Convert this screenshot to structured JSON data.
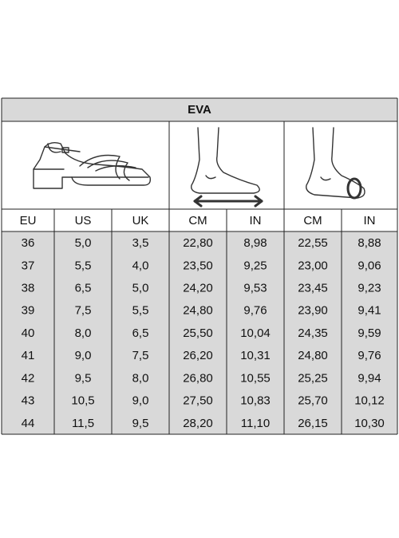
{
  "table": {
    "title": "EVA",
    "headers": [
      "EU",
      "US",
      "UK",
      "CM",
      "IN",
      "CM",
      "IN"
    ],
    "rows": [
      [
        "36",
        "5,0",
        "3,5",
        "22,80",
        "8,98",
        "22,55",
        "8,88"
      ],
      [
        "37",
        "5,5",
        "4,0",
        "23,50",
        "9,25",
        "23,00",
        "9,06"
      ],
      [
        "38",
        "6,5",
        "5,0",
        "24,20",
        "9,53",
        "23,45",
        "9,23"
      ],
      [
        "39",
        "7,5",
        "5,5",
        "24,80",
        "9,76",
        "23,90",
        "9,41"
      ],
      [
        "40",
        "8,0",
        "6,5",
        "25,50",
        "10,04",
        "24,35",
        "9,59"
      ],
      [
        "41",
        "9,0",
        "7,5",
        "26,20",
        "10,31",
        "24,80",
        "9,76"
      ],
      [
        "42",
        "9,5",
        "8,0",
        "26,80",
        "10,55",
        "25,25",
        "9,94"
      ],
      [
        "43",
        "10,5",
        "9,0",
        "27,50",
        "10,83",
        "25,70",
        "10,12"
      ],
      [
        "44",
        "11,5",
        "9,5",
        "28,20",
        "11,10",
        "26,15",
        "10,30"
      ]
    ]
  }
}
